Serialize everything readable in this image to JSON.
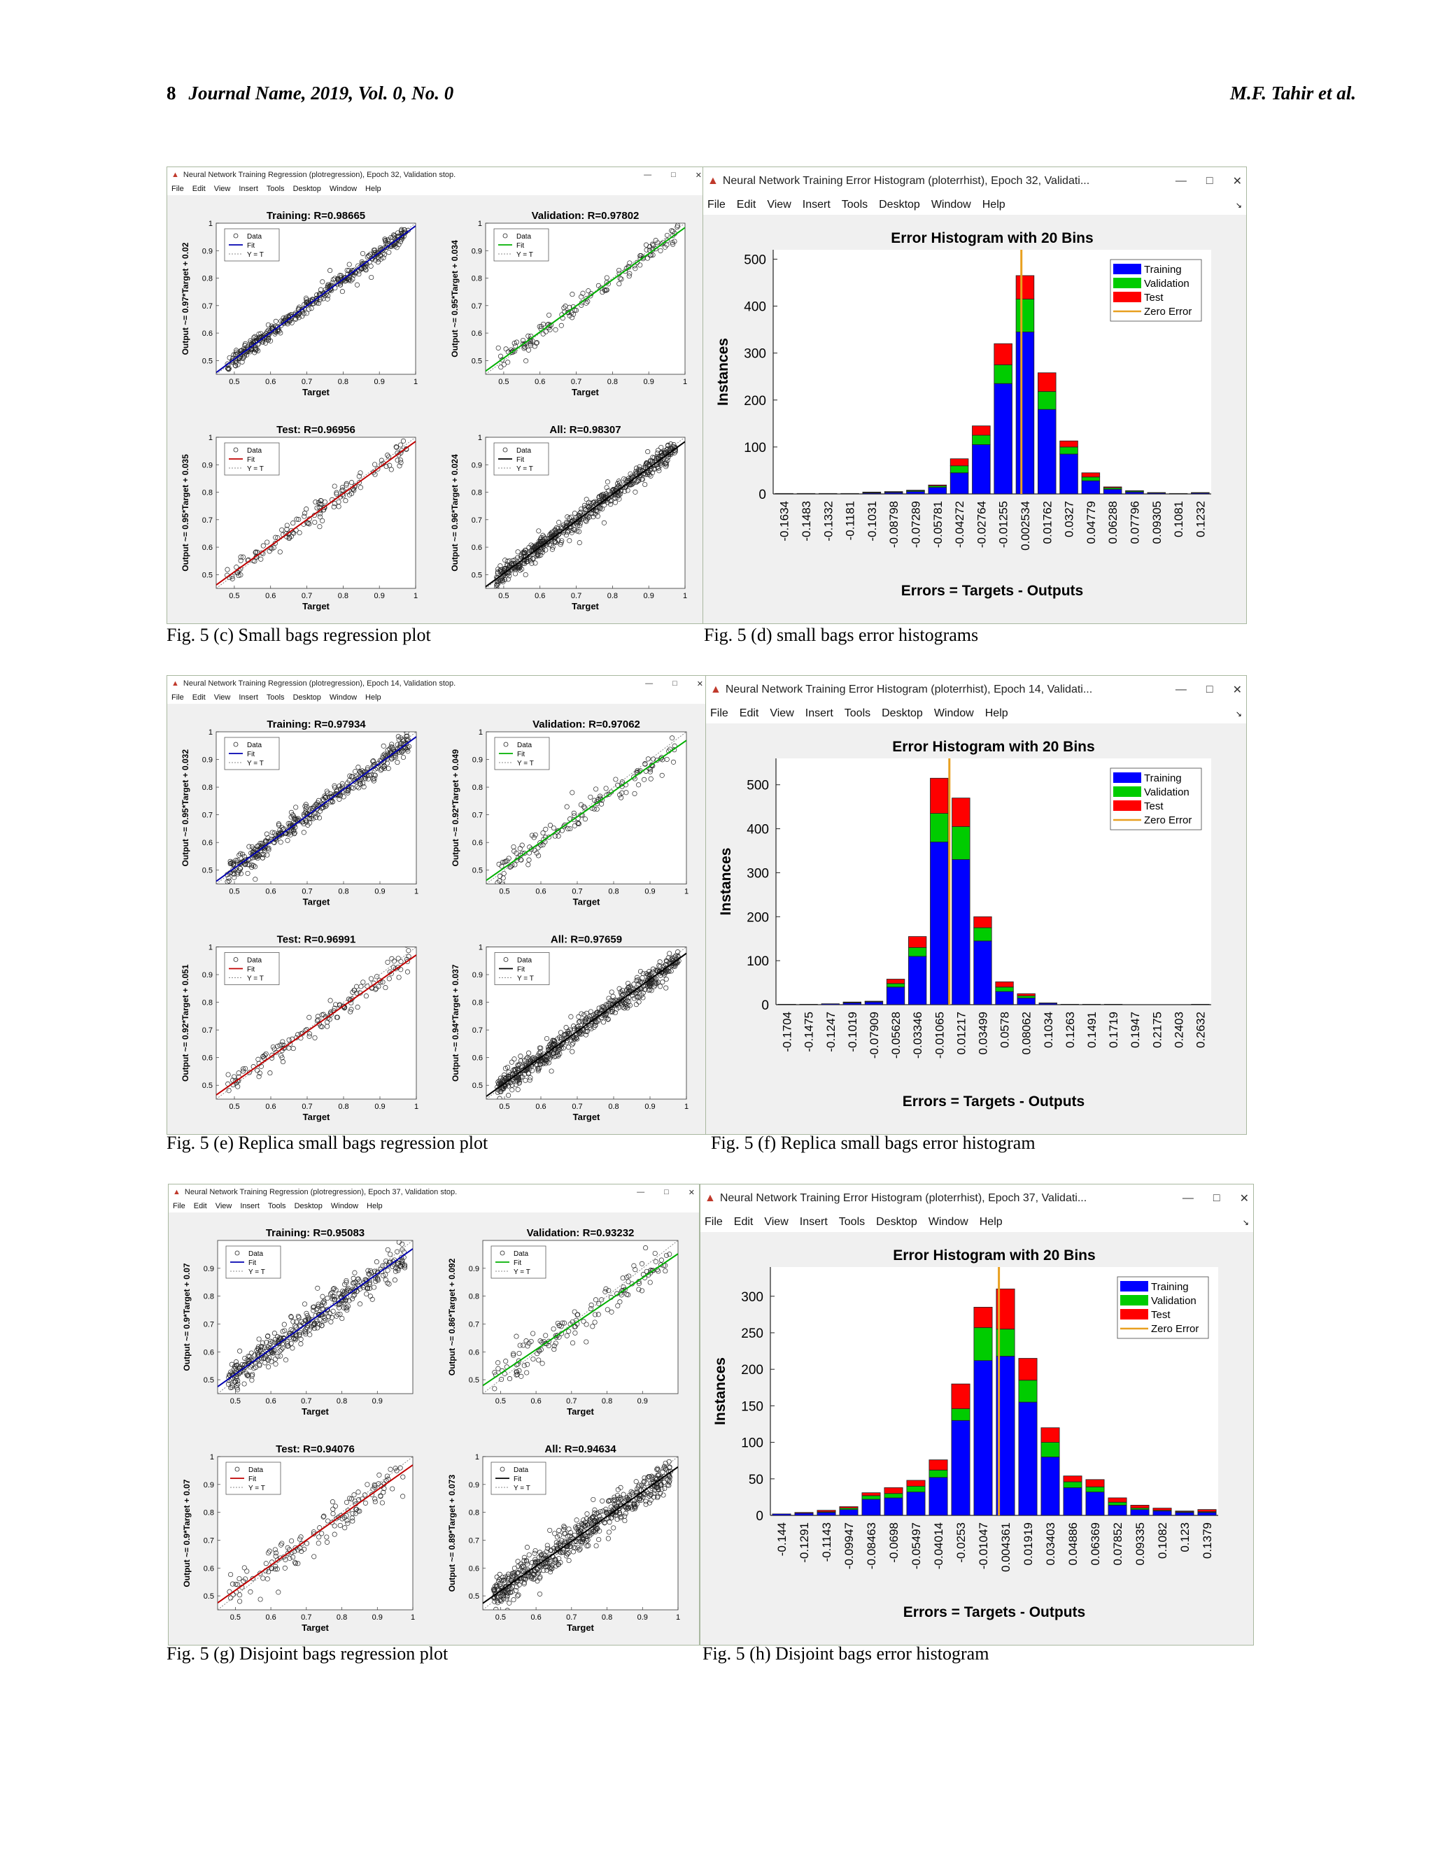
{
  "header": {
    "page_number": "8",
    "journal": "Journal Name, 2019, Vol. 0, No. 0",
    "authors": "M.F. Tahir et al."
  },
  "menu_reg": [
    "File",
    "Edit",
    "View",
    "Insert",
    "Tools",
    "Desktop",
    "Window",
    "Help"
  ],
  "menu_hist": [
    "File",
    "Edit",
    "View",
    "Insert",
    "Tools",
    "Desktop",
    "Window",
    "Help"
  ],
  "window_controls": {
    "min": "—",
    "max": "□",
    "close": "✕"
  },
  "reg_legend": [
    "Data",
    "Fit",
    "Y = T"
  ],
  "hist_legend": [
    "Training",
    "Validation",
    "Test",
    "Zero Error"
  ],
  "colors": {
    "training": "#0000ff",
    "validation": "#00cc00",
    "test": "#ff0000",
    "zero": "#e8a020",
    "fit_train": "#0000b0",
    "fit_val": "#00b000",
    "fit_test": "#c00000",
    "fit_all": "#000000"
  },
  "figures": [
    {
      "reg_window_title": "Neural Network Training Regression (plotregression), Epoch 32, Validation stop.",
      "reg_caption": "Fig. 5 (c) Small bags regression plot",
      "hist_window_title": "Neural Network Training Error Histogram (ploterrhist), Epoch 32, Validati...",
      "hist_caption": "Fig. 5 (d) small bags error histograms",
      "subplots": [
        {
          "title": "Training: R=0.98665",
          "ylabel": "Output ~= 0.97*Target + 0.02",
          "xlabel": "Target",
          "fit": "train",
          "slope": 0.97,
          "intercept": 0.02,
          "n": 420,
          "spread": 0.02,
          "ticks_x": [
            "0.5",
            "0.6",
            "0.7",
            "0.8",
            "0.9",
            "1"
          ],
          "ticks_y": [
            "0.5",
            "0.6",
            "0.7",
            "0.8",
            "0.9",
            "1"
          ]
        },
        {
          "title": "Validation: R=0.97802",
          "ylabel": "Output ~= 0.95*Target + 0.034",
          "xlabel": "Target",
          "fit": "val",
          "slope": 0.95,
          "intercept": 0.034,
          "n": 140,
          "spread": 0.025,
          "ticks_x": [
            "0.5",
            "0.6",
            "0.7",
            "0.8",
            "0.9",
            "1"
          ],
          "ticks_y": [
            "0.5",
            "0.6",
            "0.7",
            "0.8",
            "0.9",
            "1"
          ]
        },
        {
          "title": "Test: R=0.96956",
          "ylabel": "Output ~= 0.95*Target + 0.035",
          "xlabel": "Target",
          "fit": "test",
          "slope": 0.95,
          "intercept": 0.035,
          "n": 140,
          "spread": 0.03,
          "ticks_x": [
            "0.5",
            "0.6",
            "0.7",
            "0.8",
            "0.9",
            "1"
          ],
          "ticks_y": [
            "0.5",
            "0.6",
            "0.7",
            "0.8",
            "0.9",
            "1"
          ]
        },
        {
          "title": "All: R=0.98307",
          "ylabel": "Output ~= 0.96*Target + 0.024",
          "xlabel": "Target",
          "fit": "all",
          "slope": 0.96,
          "intercept": 0.024,
          "n": 600,
          "spread": 0.024,
          "ticks_x": [
            "0.5",
            "0.6",
            "0.7",
            "0.8",
            "0.9",
            "1"
          ],
          "ticks_y": [
            "0.5",
            "0.6",
            "0.7",
            "0.8",
            "0.9",
            "1"
          ]
        }
      ]
    },
    {
      "reg_window_title": "Neural Network Training Regression (plotregression), Epoch 14, Validation stop.",
      "reg_caption": "Fig. 5 (e) Replica small bags regression plot",
      "hist_window_title": "Neural Network Training Error Histogram (ploterrhist), Epoch 14, Validati...",
      "hist_caption": "Fig. 5 (f) Replica small bags error histogram",
      "subplots": [
        {
          "title": "Training: R=0.97934",
          "ylabel": "Output ~= 0.95*Target + 0.032",
          "xlabel": "Target",
          "fit": "train",
          "slope": 0.95,
          "intercept": 0.032,
          "n": 420,
          "spread": 0.028,
          "ticks_x": [
            "0.5",
            "0.6",
            "0.7",
            "0.8",
            "0.9",
            "1"
          ],
          "ticks_y": [
            "0.5",
            "0.6",
            "0.7",
            "0.8",
            "0.9",
            "1"
          ]
        },
        {
          "title": "Validation: R=0.97062",
          "ylabel": "Output ~= 0.92*Target + 0.049",
          "xlabel": "Target",
          "fit": "val",
          "slope": 0.92,
          "intercept": 0.049,
          "n": 140,
          "spread": 0.03,
          "ticks_x": [
            "0.5",
            "0.6",
            "0.7",
            "0.8",
            "0.9",
            "1"
          ],
          "ticks_y": [
            "0.5",
            "0.6",
            "0.7",
            "0.8",
            "0.9",
            "1"
          ]
        },
        {
          "title": "Test: R=0.96991",
          "ylabel": "Output ~= 0.92*Target + 0.051",
          "xlabel": "Target",
          "fit": "test",
          "slope": 0.92,
          "intercept": 0.051,
          "n": 140,
          "spread": 0.032,
          "ticks_x": [
            "0.5",
            "0.6",
            "0.7",
            "0.8",
            "0.9",
            "1"
          ],
          "ticks_y": [
            "0.5",
            "0.6",
            "0.7",
            "0.8",
            "0.9",
            "1"
          ]
        },
        {
          "title": "All: R=0.97659",
          "ylabel": "Output ~= 0.94*Target + 0.037",
          "xlabel": "Target",
          "fit": "all",
          "slope": 0.94,
          "intercept": 0.037,
          "n": 600,
          "spread": 0.03,
          "ticks_x": [
            "0.5",
            "0.6",
            "0.7",
            "0.8",
            "0.9",
            "1"
          ],
          "ticks_y": [
            "0.5",
            "0.6",
            "0.7",
            "0.8",
            "0.9",
            "1"
          ]
        }
      ]
    },
    {
      "reg_window_title": "Neural Network Training Regression (plotregression), Epoch 37, Validation stop.",
      "reg_caption": "Fig. 5 (g) Disjoint bags regression plot",
      "hist_window_title": "Neural Network Training Error Histogram (ploterrhist), Epoch 37, Validati...",
      "hist_caption": "Fig. 5 (h) Disjoint bags error histogram",
      "subplots": [
        {
          "title": "Training: R=0.95083",
          "ylabel": "Output ~= 0.9*Target + 0.07",
          "xlabel": "Target",
          "fit": "train",
          "slope": 0.9,
          "intercept": 0.07,
          "n": 420,
          "spread": 0.04,
          "ticks_x": [
            "0.5",
            "0.6",
            "0.7",
            "0.8",
            "0.9"
          ],
          "ticks_y": [
            "0.5",
            "0.6",
            "0.7",
            "0.8",
            "0.9"
          ]
        },
        {
          "title": "Validation: R=0.93232",
          "ylabel": "Output ~= 0.86*Target + 0.092",
          "xlabel": "Target",
          "fit": "val",
          "slope": 0.86,
          "intercept": 0.092,
          "n": 140,
          "spread": 0.045,
          "ticks_x": [
            "0.5",
            "0.6",
            "0.7",
            "0.8",
            "0.9"
          ],
          "ticks_y": [
            "0.5",
            "0.6",
            "0.7",
            "0.8",
            "0.9"
          ]
        },
        {
          "title": "Test: R=0.94076",
          "ylabel": "Output ~= 0.9*Target + 0.07",
          "xlabel": "Target",
          "fit": "test",
          "slope": 0.9,
          "intercept": 0.07,
          "n": 140,
          "spread": 0.045,
          "ticks_x": [
            "0.5",
            "0.6",
            "0.7",
            "0.8",
            "0.9",
            "1"
          ],
          "ticks_y": [
            "0.5",
            "0.6",
            "0.7",
            "0.8",
            "0.9",
            "1"
          ]
        },
        {
          "title": "All: R=0.94634",
          "ylabel": "Output ~= 0.89*Target + 0.073",
          "xlabel": "Target",
          "fit": "all",
          "slope": 0.89,
          "intercept": 0.073,
          "n": 600,
          "spread": 0.042,
          "ticks_x": [
            "0.5",
            "0.6",
            "0.7",
            "0.8",
            "0.9",
            "1"
          ],
          "ticks_y": [
            "0.5",
            "0.6",
            "0.7",
            "0.8",
            "0.9",
            "1"
          ]
        }
      ]
    }
  ],
  "chart_data": [
    {
      "type": "bar",
      "title": "Error Histogram with 20 Bins",
      "xlabel": "Errors = Targets - Outputs",
      "ylabel": "Instances",
      "ylim": [
        0,
        520
      ],
      "yticks": [
        0,
        100,
        200,
        300,
        400,
        500
      ],
      "zero_error_x": 0,
      "categories": [
        "-0.1634",
        "-0.1483",
        "-0.1332",
        "-0.1181",
        "-0.1031",
        "-0.08798",
        "-0.07289",
        "-0.05781",
        "-0.04272",
        "-0.02764",
        "-0.01255",
        "0.002534",
        "0.01762",
        "0.0327",
        "0.04779",
        "0.06288",
        "0.07796",
        "0.09305",
        "0.1081",
        "0.1232"
      ],
      "series": [
        {
          "name": "Training",
          "values": [
            1,
            1,
            1,
            1,
            2,
            3,
            5,
            14,
            45,
            105,
            235,
            345,
            180,
            85,
            28,
            10,
            4,
            2,
            1,
            2
          ]
        },
        {
          "name": "Validation",
          "values": [
            0,
            0,
            0,
            0,
            1,
            1,
            2,
            3,
            15,
            20,
            40,
            70,
            38,
            15,
            8,
            3,
            2,
            0,
            0,
            0
          ]
        },
        {
          "name": "Test",
          "values": [
            0,
            0,
            0,
            0,
            1,
            1,
            1,
            2,
            15,
            20,
            45,
            50,
            40,
            13,
            9,
            2,
            1,
            1,
            0,
            1
          ]
        }
      ]
    },
    {
      "type": "bar",
      "title": "Error Histogram with 20 Bins",
      "xlabel": "Errors = Targets - Outputs",
      "ylabel": "Instances",
      "ylim": [
        0,
        560
      ],
      "yticks": [
        0,
        100,
        200,
        300,
        400,
        500
      ],
      "zero_error_x": 0,
      "categories": [
        "-0.1704",
        "-0.1475",
        "-0.1247",
        "-0.1019",
        "-0.07909",
        "-0.05628",
        "-0.03346",
        "-0.01065",
        "0.01217",
        "0.03499",
        "0.0578",
        "0.08062",
        "0.1034",
        "0.1263",
        "0.1491",
        "0.1719",
        "0.1947",
        "0.2175",
        "0.2403",
        "0.2632"
      ],
      "series": [
        {
          "name": "Training",
          "values": [
            1,
            1,
            2,
            4,
            6,
            40,
            110,
            370,
            330,
            145,
            30,
            15,
            3,
            1,
            1,
            1,
            0,
            0,
            0,
            1
          ]
        },
        {
          "name": "Validation",
          "values": [
            0,
            0,
            0,
            1,
            1,
            8,
            20,
            65,
            75,
            30,
            10,
            5,
            1,
            0,
            0,
            0,
            0,
            0,
            0,
            0
          ]
        },
        {
          "name": "Test",
          "values": [
            0,
            0,
            0,
            1,
            1,
            10,
            25,
            80,
            65,
            25,
            12,
            5,
            0,
            0,
            0,
            0,
            0,
            0,
            0,
            0
          ]
        }
      ]
    },
    {
      "type": "bar",
      "title": "Error Histogram with 20 Bins",
      "xlabel": "Errors = Targets - Outputs",
      "ylabel": "Instances",
      "ylim": [
        0,
        340
      ],
      "yticks": [
        0,
        50,
        100,
        150,
        200,
        250,
        300
      ],
      "zero_error_x": 0,
      "categories": [
        "-0.144",
        "-0.1291",
        "-0.1143",
        "-0.09947",
        "-0.08463",
        "-0.0698",
        "-0.05497",
        "-0.04014",
        "-0.0253",
        "-0.01047",
        "0.004361",
        "0.01919",
        "0.03403",
        "0.04886",
        "0.06369",
        "0.07852",
        "0.09335",
        "0.1082",
        "0.123",
        "0.1379"
      ],
      "series": [
        {
          "name": "Training",
          "values": [
            2,
            3,
            4,
            8,
            22,
            24,
            32,
            52,
            130,
            212,
            218,
            155,
            80,
            38,
            32,
            14,
            8,
            6,
            4,
            4
          ]
        },
        {
          "name": "Validation",
          "values": [
            0,
            0,
            1,
            2,
            5,
            6,
            8,
            10,
            16,
            45,
            37,
            30,
            20,
            8,
            7,
            4,
            2,
            1,
            1,
            1
          ]
        },
        {
          "name": "Test",
          "values": [
            0,
            1,
            2,
            2,
            4,
            8,
            8,
            14,
            34,
            28,
            55,
            30,
            20,
            8,
            10,
            6,
            4,
            3,
            1,
            3
          ]
        }
      ]
    }
  ]
}
